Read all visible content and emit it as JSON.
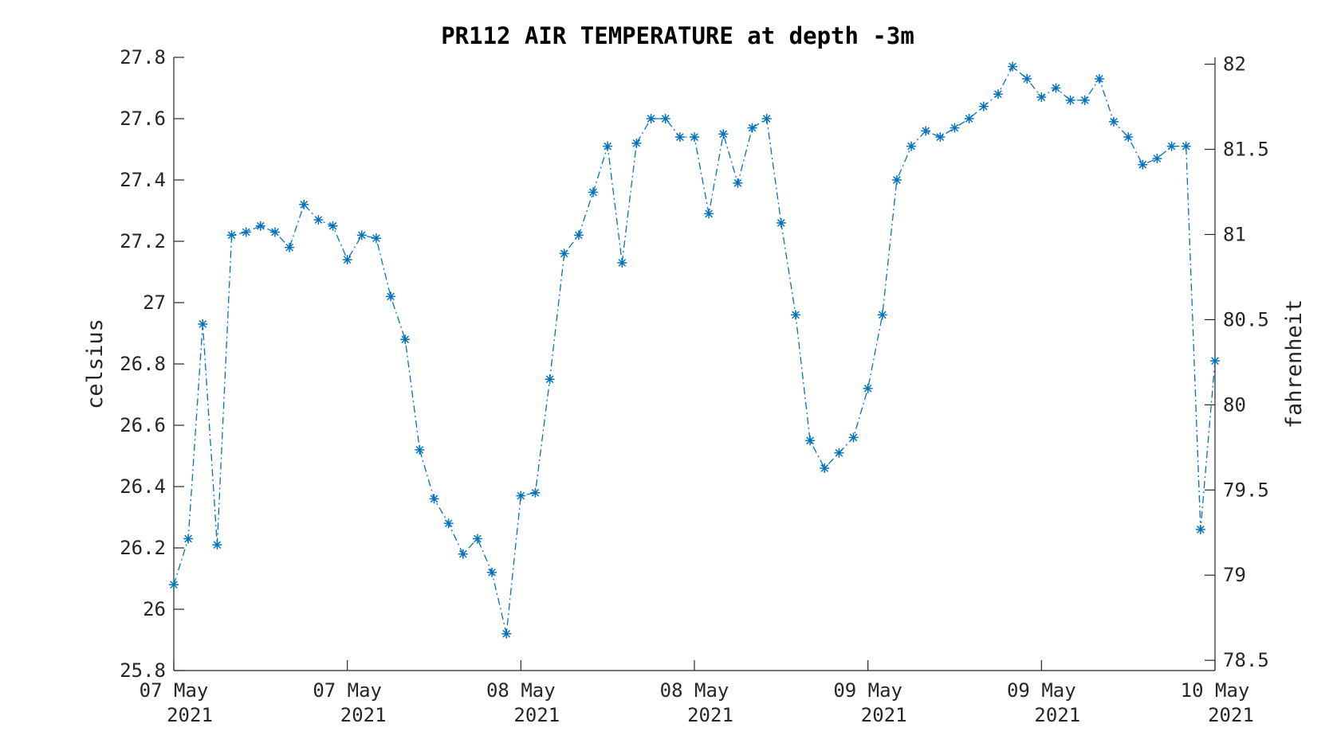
{
  "chart_data": {
    "type": "line",
    "title": "PR112 AIR TEMPERATURE at depth -3m",
    "ylabel": "celsius",
    "ylabel_right": "fahrenheit",
    "ylim": [
      25.8,
      27.8
    ],
    "ylim_right": [
      78.44,
      82.04
    ],
    "yticks": [
      "25.8",
      "26",
      "26.2",
      "26.4",
      "26.6",
      "26.8",
      "27",
      "27.2",
      "27.4",
      "27.6",
      "27.8"
    ],
    "yticks_right": [
      "78.5",
      "79",
      "79.5",
      "80",
      "80.5",
      "81",
      "81.5",
      "82"
    ],
    "xticks": [
      {
        "line1": "07 May",
        "line2": "2021"
      },
      {
        "line1": "07 May",
        "line2": "2021"
      },
      {
        "line1": "08 May",
        "line2": "2021"
      },
      {
        "line1": "08 May",
        "line2": "2021"
      },
      {
        "line1": "09 May",
        "line2": "2021"
      },
      {
        "line1": "09 May",
        "line2": "2021"
      },
      {
        "line1": "10 May",
        "line2": "2021"
      }
    ],
    "grid": false,
    "color": "#0072BD",
    "line_style": "dash-dot",
    "marker": "asterisk",
    "series": [
      {
        "values": [
          26.08,
          26.23,
          26.93,
          26.21,
          27.22,
          27.23,
          27.25,
          27.23,
          27.18,
          27.32,
          27.27,
          27.25,
          27.14,
          27.22,
          27.21,
          27.02,
          26.88,
          26.52,
          26.36,
          26.28,
          26.18,
          26.23,
          26.12,
          25.92,
          26.37,
          26.38,
          26.75,
          27.16,
          27.22,
          27.36,
          27.51,
          27.13,
          27.52,
          27.6,
          27.6,
          27.54,
          27.54,
          27.29,
          27.55,
          27.39,
          27.57,
          27.6,
          27.26,
          26.96,
          26.55,
          26.46,
          26.51,
          26.56,
          26.72,
          26.96,
          27.4,
          27.51,
          27.56,
          27.54,
          27.57,
          27.6,
          27.64,
          27.68,
          27.77,
          27.73,
          27.67,
          27.7,
          27.66,
          27.66,
          27.73,
          27.59,
          27.54,
          27.45,
          27.47,
          27.51,
          27.51,
          26.26,
          26.81
        ]
      }
    ]
  }
}
